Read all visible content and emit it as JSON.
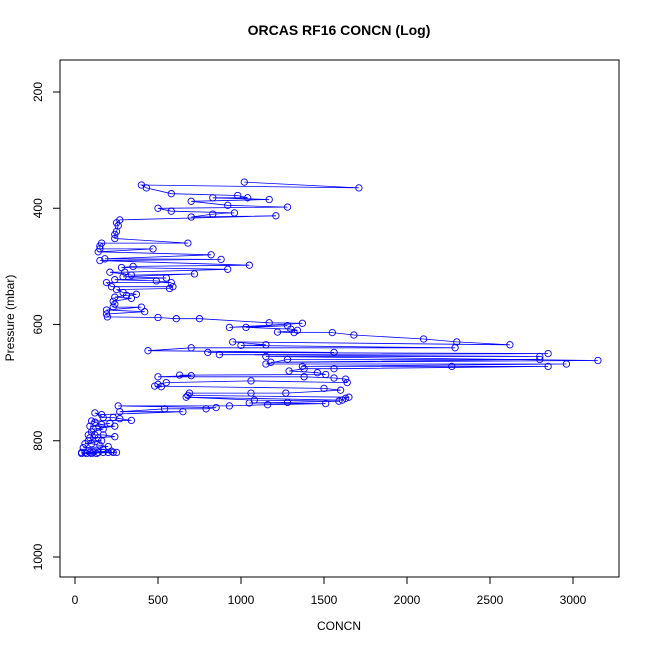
{
  "chart_data": {
    "type": "line",
    "title": "ORCAS RF16 CONCN (Log)",
    "xlabel": "CONCN",
    "ylabel": "Pressure (mbar)",
    "xlim": [
      0,
      3200
    ],
    "ylim": [
      1000,
      200
    ],
    "y_reversed": true,
    "x_ticks": [
      "0",
      "500",
      "1000",
      "1500",
      "2000",
      "2500",
      "3000"
    ],
    "y_ticks": [
      "200",
      "400",
      "600",
      "800",
      "1000"
    ],
    "grid": false,
    "legend": "none",
    "series": [
      {
        "marker": "open-circle",
        "line": true,
        "points": [
          [
            1020,
            355
          ],
          [
            1710,
            365
          ],
          [
            400,
            360
          ],
          [
            430,
            365
          ],
          [
            580,
            375
          ],
          [
            980,
            378
          ],
          [
            1040,
            382
          ],
          [
            830,
            382
          ],
          [
            1170,
            385
          ],
          [
            700,
            388
          ],
          [
            920,
            395
          ],
          [
            1280,
            398
          ],
          [
            500,
            400
          ],
          [
            580,
            405
          ],
          [
            960,
            408
          ],
          [
            830,
            410
          ],
          [
            700,
            415
          ],
          [
            1210,
            413
          ],
          [
            270,
            420
          ],
          [
            250,
            425
          ],
          [
            260,
            430
          ],
          [
            250,
            440
          ],
          [
            240,
            445
          ],
          [
            240,
            452
          ],
          [
            680,
            460
          ],
          [
            160,
            460
          ],
          [
            150,
            465
          ],
          [
            150,
            470
          ],
          [
            470,
            470
          ],
          [
            140,
            475
          ],
          [
            820,
            480
          ],
          [
            180,
            487
          ],
          [
            880,
            488
          ],
          [
            150,
            490
          ],
          [
            1050,
            498
          ],
          [
            350,
            500
          ],
          [
            280,
            502
          ],
          [
            920,
            505
          ],
          [
            300,
            510
          ],
          [
            210,
            510
          ],
          [
            340,
            515
          ],
          [
            720,
            513
          ],
          [
            290,
            518
          ],
          [
            550,
            520
          ],
          [
            240,
            523
          ],
          [
            490,
            525
          ],
          [
            580,
            528
          ],
          [
            190,
            528
          ],
          [
            220,
            535
          ],
          [
            590,
            535
          ],
          [
            570,
            538
          ],
          [
            250,
            540
          ],
          [
            290,
            545
          ],
          [
            370,
            548
          ],
          [
            310,
            550
          ],
          [
            240,
            553
          ],
          [
            340,
            555
          ],
          [
            230,
            560
          ],
          [
            240,
            565
          ],
          [
            230,
            570
          ],
          [
            400,
            570
          ],
          [
            190,
            575
          ],
          [
            420,
            578
          ],
          [
            190,
            582
          ],
          [
            195,
            587
          ],
          [
            500,
            588
          ],
          [
            610,
            590
          ],
          [
            750,
            590
          ],
          [
            1170,
            597
          ],
          [
            1370,
            598
          ],
          [
            930,
            605
          ],
          [
            1280,
            602
          ],
          [
            1030,
            605
          ],
          [
            1300,
            608
          ],
          [
            1340,
            610
          ],
          [
            1220,
            613
          ],
          [
            1320,
            614
          ],
          [
            1550,
            614
          ],
          [
            1680,
            618
          ],
          [
            2100,
            625
          ],
          [
            2300,
            630
          ],
          [
            2620,
            635
          ],
          [
            950,
            630
          ],
          [
            1150,
            635
          ],
          [
            1000,
            636
          ],
          [
            2290,
            640
          ],
          [
            700,
            640
          ],
          [
            440,
            645
          ],
          [
            1560,
            648
          ],
          [
            800,
            648
          ],
          [
            2850,
            650
          ],
          [
            870,
            652
          ],
          [
            2800,
            655
          ],
          [
            1150,
            655
          ],
          [
            3150,
            662
          ],
          [
            1180,
            665
          ],
          [
            2800,
            660
          ],
          [
            1280,
            660
          ],
          [
            1150,
            668
          ],
          [
            2960,
            668
          ],
          [
            1370,
            672
          ],
          [
            2270,
            672
          ],
          [
            2850,
            672
          ],
          [
            1560,
            676
          ],
          [
            1380,
            676
          ],
          [
            1290,
            680
          ],
          [
            1460,
            683
          ],
          [
            1510,
            686
          ],
          [
            630,
            687
          ],
          [
            700,
            688
          ],
          [
            500,
            690
          ],
          [
            1380,
            690
          ],
          [
            1560,
            692
          ],
          [
            1630,
            694
          ],
          [
            1640,
            700
          ],
          [
            1060,
            697
          ],
          [
            550,
            700
          ],
          [
            500,
            703
          ],
          [
            520,
            707
          ],
          [
            480,
            706
          ],
          [
            1500,
            710
          ],
          [
            1600,
            713
          ],
          [
            1270,
            718
          ],
          [
            1060,
            718
          ],
          [
            690,
            718
          ],
          [
            680,
            722
          ],
          [
            1650,
            725
          ],
          [
            1630,
            727
          ],
          [
            1610,
            730
          ],
          [
            670,
            725
          ],
          [
            1080,
            730
          ],
          [
            1590,
            732
          ],
          [
            1280,
            734
          ],
          [
            1050,
            735
          ],
          [
            1510,
            736
          ],
          [
            1160,
            738
          ],
          [
            930,
            740
          ],
          [
            260,
            740
          ],
          [
            850,
            743
          ],
          [
            790,
            745
          ],
          [
            540,
            745
          ],
          [
            270,
            750
          ],
          [
            650,
            750
          ],
          [
            160,
            755
          ],
          [
            120,
            752
          ],
          [
            170,
            760
          ],
          [
            230,
            760
          ],
          [
            270,
            762
          ],
          [
            340,
            765
          ],
          [
            100,
            766
          ],
          [
            120,
            768
          ],
          [
            160,
            772
          ],
          [
            210,
            770
          ],
          [
            90,
            775
          ],
          [
            240,
            775
          ],
          [
            110,
            780
          ],
          [
            170,
            780
          ],
          [
            100,
            785
          ],
          [
            120,
            790
          ],
          [
            80,
            790
          ],
          [
            170,
            790
          ],
          [
            240,
            793
          ],
          [
            90,
            795
          ],
          [
            140,
            795
          ],
          [
            80,
            800
          ],
          [
            160,
            800
          ],
          [
            60,
            805
          ],
          [
            100,
            805
          ],
          [
            150,
            808
          ],
          [
            200,
            810
          ],
          [
            50,
            812
          ],
          [
            170,
            815
          ],
          [
            220,
            818
          ],
          [
            40,
            820
          ],
          [
            60,
            820
          ],
          [
            90,
            820
          ],
          [
            110,
            820
          ],
          [
            140,
            820
          ],
          [
            170,
            820
          ],
          [
            200,
            820
          ],
          [
            230,
            820
          ],
          [
            250,
            820
          ],
          [
            40,
            822
          ],
          [
            70,
            822
          ],
          [
            100,
            822
          ],
          [
            130,
            822
          ]
        ]
      }
    ]
  },
  "colors": {
    "series": "#0000ff",
    "axis": "#000000",
    "background": "#ffffff"
  }
}
